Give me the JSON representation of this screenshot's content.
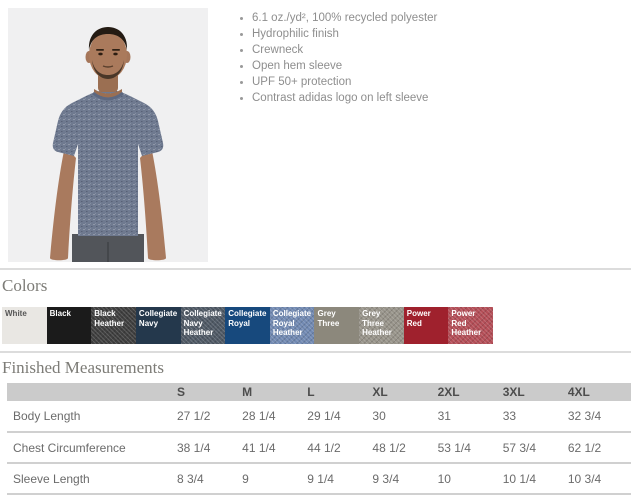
{
  "product": {
    "features": [
      "6.1 oz./yd², 100% recycled polyester",
      "Hydrophilic finish",
      "Crewneck",
      "Open hem sleeve",
      "UPF 50+ protection",
      "Contrast adidas logo on left sleeve"
    ]
  },
  "colors_section": {
    "heading": "Colors",
    "swatches": [
      {
        "name": "White",
        "hex": "#e9e7e3",
        "text": "#555555",
        "heather": false
      },
      {
        "name": "Black",
        "hex": "#1b1b1b",
        "text": "#ffffff",
        "heather": false
      },
      {
        "name": "Black Heather",
        "hex": "#3f3f3f",
        "text": "#ffffff",
        "heather": true
      },
      {
        "name": "Collegiate Navy",
        "hex": "#24384c",
        "text": "#ffffff",
        "heather": false
      },
      {
        "name": "Collegiate Navy Heather",
        "hex": "#4f5965",
        "text": "#ffffff",
        "heather": true
      },
      {
        "name": "Collegiate Royal",
        "hex": "#17497d",
        "text": "#ffffff",
        "heather": false
      },
      {
        "name": "Collegiate Royal Heather",
        "hex": "#7189b2",
        "text": "#ffffff",
        "heather": true
      },
      {
        "name": "Grey Three",
        "hex": "#8c887c",
        "text": "#ffffff",
        "heather": false
      },
      {
        "name": "Grey Three Heather",
        "hex": "#98948a",
        "text": "#ffffff",
        "heather": true
      },
      {
        "name": "Power Red",
        "hex": "#9f212d",
        "text": "#ffffff",
        "heather": false
      },
      {
        "name": "Power Red Heather",
        "hex": "#b44e57",
        "text": "#ffffff",
        "heather": true
      }
    ]
  },
  "measurements": {
    "heading": "Finished Measurements",
    "sizes": [
      "S",
      "M",
      "L",
      "XL",
      "2XL",
      "3XL",
      "4XL"
    ],
    "rows": [
      {
        "label": "Body Length",
        "values": [
          "27 1/2",
          "28 1/4",
          "29 1/4",
          "30",
          "31",
          "33",
          "32 3/4"
        ]
      },
      {
        "label": "Chest Circumference",
        "values": [
          "38 1/4",
          "41 1/4",
          "44 1/2",
          "48 1/2",
          "53 1/4",
          "57 3/4",
          "62 1/2"
        ]
      },
      {
        "label": "Sleeve Length",
        "values": [
          "8 3/4",
          "9",
          "9 1/4",
          "9 3/4",
          "10",
          "10 1/4",
          "10 3/4"
        ]
      }
    ]
  }
}
